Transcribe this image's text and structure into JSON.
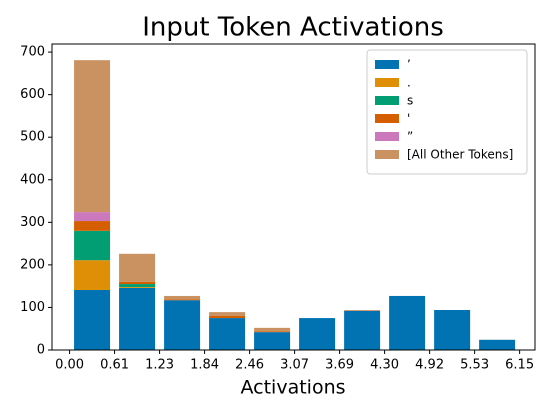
{
  "chart_data": {
    "type": "histogram",
    "title": "Input Token Activations",
    "x_label": "Activations",
    "bins": [
      0,
      0.615,
      1.23,
      1.845,
      2.46,
      3.075,
      3.69,
      4.305,
      4.92,
      5.535,
      6.15
    ],
    "stacked": true,
    "series": [
      {
        "name": "’",
        "color": "#0173b2",
        "values": [
          141,
          146,
          117,
          75,
          42,
          75,
          92,
          127,
          94,
          24
        ]
      },
      {
        "name": ".",
        "color": "#de8f05",
        "values": [
          70,
          2,
          0,
          0,
          0,
          0,
          0,
          0,
          0,
          0
        ]
      },
      {
        "name": "s",
        "color": "#029e73",
        "values": [
          69,
          7,
          0,
          0,
          0,
          0,
          0,
          0,
          0,
          0
        ]
      },
      {
        "name": "'",
        "color": "#d55e00",
        "values": [
          23,
          5,
          2,
          5,
          2,
          0,
          0,
          0,
          0,
          0
        ]
      },
      {
        "name": "”",
        "color": "#cc78bc",
        "values": [
          21,
          0,
          0,
          0,
          0,
          0,
          0,
          0,
          0,
          0
        ]
      },
      {
        "name": "[All Other Tokens]",
        "color": "#ca9161",
        "values": [
          357,
          66,
          8,
          9,
          8,
          0,
          2,
          0,
          0,
          0
        ]
      }
    ],
    "xlim": [
      -0.24,
      6.36
    ],
    "xticks": [
      {
        "value": 0,
        "label": "0.00"
      },
      {
        "value": 0.615,
        "label": "0.61"
      },
      1.23,
      {
        "value": 1.845,
        "label": "1.84"
      },
      2.46,
      {
        "value": 3.075,
        "label": "3.07"
      },
      3.69,
      {
        "value": 4.305,
        "label": "4.30"
      },
      4.92,
      {
        "value": 5.535,
        "label": "5.53"
      },
      6.15
    ],
    "ylim": [
      0,
      719
    ],
    "yticks": [
      0,
      100,
      200,
      300,
      400,
      500,
      600,
      700
    ],
    "legend": "upper right"
  }
}
